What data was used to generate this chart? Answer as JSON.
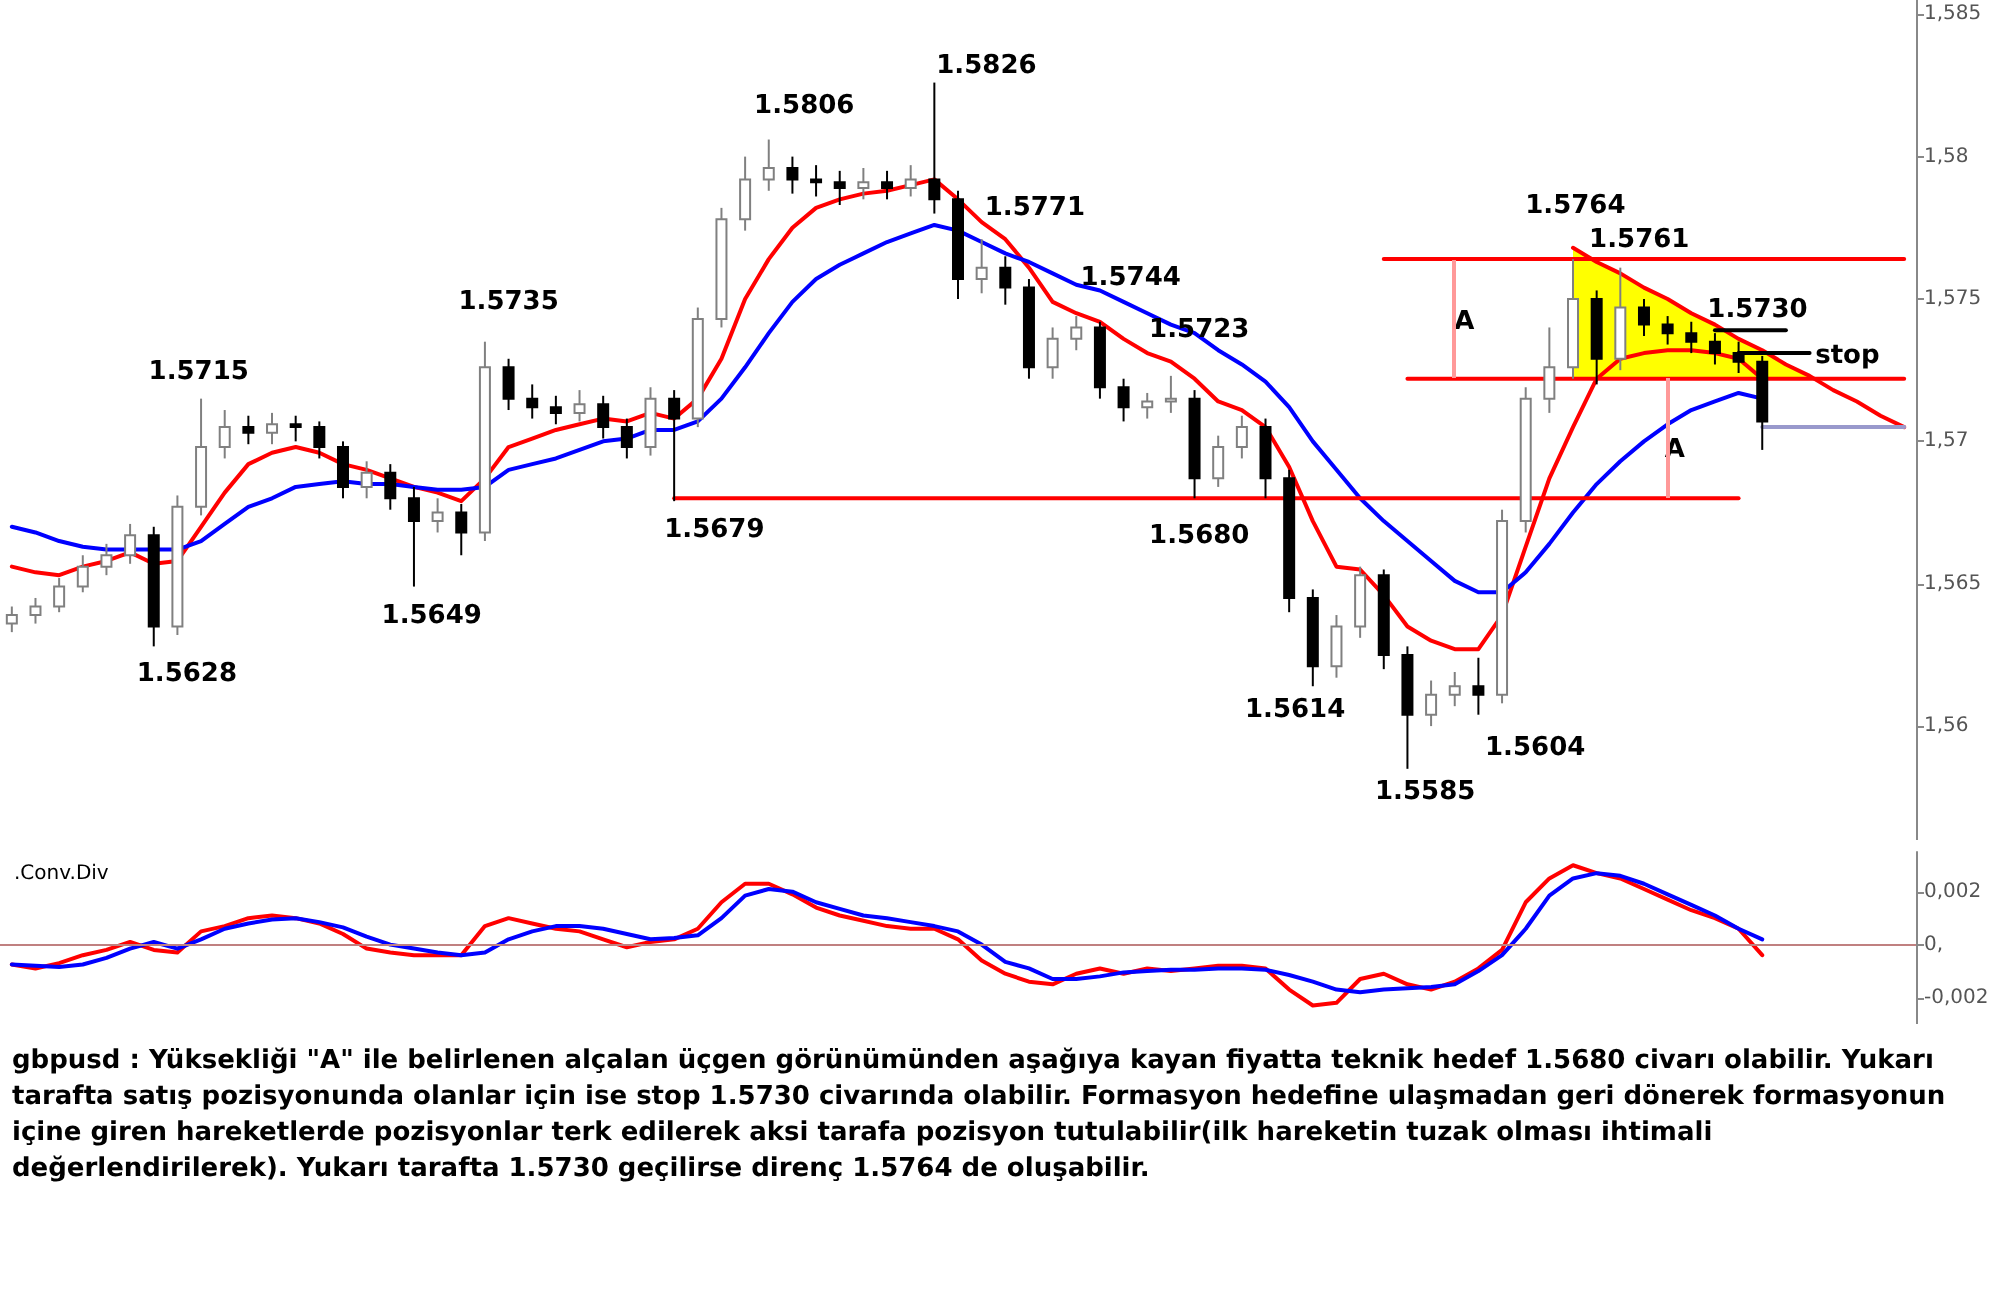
{
  "chart_data": [
    {
      "type": "candlestick",
      "marker": "none",
      "tick_labels": "y",
      "categories": [
        null,
        null,
        null,
        null,
        null,
        null,
        null,
        null,
        null,
        null,
        null,
        null,
        null,
        null,
        null,
        null,
        null,
        null,
        null,
        null,
        null,
        null,
        null,
        null,
        null,
        null,
        null,
        null,
        null,
        null,
        null,
        null,
        null,
        null,
        null,
        null,
        null,
        null,
        null,
        null,
        null,
        null,
        null,
        null,
        null,
        null,
        null,
        null,
        null,
        null,
        null,
        null,
        null,
        null,
        null,
        null,
        null,
        null,
        null,
        null,
        null,
        null,
        null,
        null,
        null,
        null,
        null,
        null,
        null,
        null,
        null,
        null,
        null,
        null,
        null,
        null,
        null,
        null,
        null,
        null,
        null
      ],
      "ohlc": [
        [
          1.5636,
          1.5642,
          1.5633,
          1.5639
        ],
        [
          1.5639,
          1.5645,
          1.5636,
          1.5642
        ],
        [
          1.5642,
          1.5652,
          1.564,
          1.5649
        ],
        [
          1.5649,
          1.566,
          1.5647,
          1.5656
        ],
        [
          1.5656,
          1.5664,
          1.5653,
          1.566
        ],
        [
          1.566,
          1.5671,
          1.5657,
          1.5667
        ],
        [
          1.5667,
          1.567,
          1.5628,
          1.5635
        ],
        [
          1.5635,
          1.5681,
          1.5632,
          1.5677
        ],
        [
          1.5677,
          1.5715,
          1.5674,
          1.5698
        ],
        [
          1.5698,
          1.5711,
          1.5694,
          1.5705
        ],
        [
          1.5705,
          1.5709,
          1.5699,
          1.5703
        ],
        [
          1.5703,
          1.571,
          1.5699,
          1.5706
        ],
        [
          1.5706,
          1.5709,
          1.57,
          1.5705
        ],
        [
          1.5705,
          1.5707,
          1.5694,
          1.5698
        ],
        [
          1.5698,
          1.57,
          1.568,
          1.5684
        ],
        [
          1.5684,
          1.5693,
          1.568,
          1.5689
        ],
        [
          1.5689,
          1.5692,
          1.5676,
          1.568
        ],
        [
          1.568,
          1.5684,
          1.5649,
          1.5672
        ],
        [
          1.5672,
          1.568,
          1.5668,
          1.5675
        ],
        [
          1.5675,
          1.5678,
          1.566,
          1.5668
        ],
        [
          1.5668,
          1.5735,
          1.5665,
          1.5726
        ],
        [
          1.5726,
          1.5729,
          1.5711,
          1.5715
        ],
        [
          1.5715,
          1.572,
          1.5708,
          1.5712
        ],
        [
          1.5712,
          1.5716,
          1.5706,
          1.571
        ],
        [
          1.571,
          1.5718,
          1.5707,
          1.5713
        ],
        [
          1.5713,
          1.5716,
          1.5701,
          1.5705
        ],
        [
          1.5705,
          1.5708,
          1.5694,
          1.5698
        ],
        [
          1.5698,
          1.5719,
          1.5695,
          1.5715
        ],
        [
          1.5715,
          1.5718,
          1.5679,
          1.5708
        ],
        [
          1.5708,
          1.5747,
          1.5705,
          1.5743
        ],
        [
          1.5743,
          1.5782,
          1.574,
          1.5778
        ],
        [
          1.5778,
          1.58,
          1.5774,
          1.5792
        ],
        [
          1.5792,
          1.5806,
          1.5788,
          1.5796
        ],
        [
          1.5796,
          1.58,
          1.5787,
          1.5792
        ],
        [
          1.5792,
          1.5797,
          1.5786,
          1.5791
        ],
        [
          1.5791,
          1.5795,
          1.5783,
          1.5789
        ],
        [
          1.5789,
          1.5796,
          1.5785,
          1.5791
        ],
        [
          1.5791,
          1.5795,
          1.5785,
          1.5789
        ],
        [
          1.5789,
          1.5797,
          1.5786,
          1.5792
        ],
        [
          1.5792,
          1.5826,
          1.578,
          1.5785
        ],
        [
          1.5785,
          1.5788,
          1.575,
          1.5757
        ],
        [
          1.5757,
          1.5771,
          1.5752,
          1.5761
        ],
        [
          1.5761,
          1.5765,
          1.5748,
          1.5754
        ],
        [
          1.5754,
          1.5757,
          1.5722,
          1.5726
        ],
        [
          1.5726,
          1.574,
          1.5722,
          1.5736
        ],
        [
          1.5736,
          1.5744,
          1.5732,
          1.574
        ],
        [
          1.574,
          1.5742,
          1.5715,
          1.5719
        ],
        [
          1.5719,
          1.5722,
          1.5707,
          1.5712
        ],
        [
          1.5712,
          1.5717,
          1.5708,
          1.5714
        ],
        [
          1.5714,
          1.5723,
          1.571,
          1.5715
        ],
        [
          1.5715,
          1.5718,
          1.568,
          1.5687
        ],
        [
          1.5687,
          1.5702,
          1.5684,
          1.5698
        ],
        [
          1.5698,
          1.5709,
          1.5694,
          1.5705
        ],
        [
          1.5705,
          1.5708,
          1.568,
          1.5687
        ],
        [
          1.5687,
          1.569,
          1.564,
          1.5645
        ],
        [
          1.5645,
          1.5648,
          1.5614,
          1.5621
        ],
        [
          1.5621,
          1.5639,
          1.5617,
          1.5635
        ],
        [
          1.5635,
          1.5656,
          1.5631,
          1.5653
        ],
        [
          1.5653,
          1.5655,
          1.562,
          1.5625
        ],
        [
          1.5625,
          1.5628,
          1.5585,
          1.5604
        ],
        [
          1.5604,
          1.5616,
          1.56,
          1.5611
        ],
        [
          1.5611,
          1.5619,
          1.5607,
          1.5614
        ],
        [
          1.5614,
          1.5624,
          1.5604,
          1.5611
        ],
        [
          1.5611,
          1.5676,
          1.5608,
          1.5672
        ],
        [
          1.5672,
          1.5719,
          1.5668,
          1.5715
        ],
        [
          1.5715,
          1.574,
          1.571,
          1.5726
        ],
        [
          1.5726,
          1.5764,
          1.5722,
          1.575
        ],
        [
          1.575,
          1.5753,
          1.572,
          1.5729
        ],
        [
          1.5729,
          1.5761,
          1.5725,
          1.5747
        ],
        [
          1.5747,
          1.575,
          1.5737,
          1.5741
        ],
        [
          1.5741,
          1.5744,
          1.5734,
          1.5738
        ],
        [
          1.5738,
          1.5742,
          1.5731,
          1.5735
        ],
        [
          1.5735,
          1.5738,
          1.5727,
          1.5731
        ],
        [
          1.5731,
          1.5735,
          1.5724,
          1.5728
        ],
        [
          1.5728,
          1.573,
          1.5697,
          1.5707
        ],
        null,
        null,
        null,
        null,
        null,
        null
      ],
      "series": [
        {
          "type": "line",
          "color": "#ff0000",
          "values": [
            null,
            null,
            null,
            null,
            null,
            null,
            null,
            null,
            null,
            null,
            null,
            null,
            null,
            null,
            null,
            null,
            null,
            null,
            null,
            null,
            null,
            null,
            null,
            null,
            null,
            null,
            null,
            null,
            null,
            null,
            null,
            null,
            null,
            null,
            null,
            null,
            null,
            null,
            null,
            null,
            null,
            null,
            null,
            null,
            null,
            null,
            null,
            null,
            null,
            null,
            null,
            null,
            null,
            null,
            null,
            null,
            null,
            null,
            null,
            null,
            null,
            null,
            null,
            null,
            null,
            null,
            1.5768,
            1.5763,
            1.5759,
            1.5754,
            1.575,
            1.5745,
            1.5741,
            1.5736,
            1.5732,
            1.5727,
            1.5723,
            1.5718,
            1.5714,
            1.5709,
            1.5705
          ],
          "lower": [
            null,
            null,
            null,
            null,
            null,
            null,
            null,
            null,
            null,
            null,
            null,
            null,
            null,
            null,
            null,
            null,
            null,
            null,
            null,
            null,
            null,
            null,
            null,
            null,
            null,
            null,
            null,
            null,
            null,
            null,
            null,
            null,
            null,
            null,
            null,
            null,
            null,
            null,
            null,
            null,
            null,
            null,
            null,
            null,
            null,
            null,
            null,
            null,
            null,
            null,
            null,
            null,
            null,
            null,
            null,
            null,
            null,
            null,
            null,
            null,
            null,
            null,
            null,
            null,
            null,
            null,
            1.5722,
            1.5722,
            1.5722,
            1.5722,
            1.5722,
            1.5722,
            1.5722,
            1.5722,
            1.5722,
            1.5722,
            1.5722,
            null,
            null,
            null,
            null
          ],
          "upper": [
            null,
            null,
            null,
            null,
            null,
            null,
            null,
            null,
            null,
            null,
            null,
            null,
            null,
            null,
            null,
            null,
            null,
            null,
            null,
            null,
            null,
            null,
            null,
            null,
            null,
            null,
            null,
            null,
            null,
            null,
            null,
            null,
            null,
            null,
            null,
            null,
            null,
            null,
            null,
            null,
            null,
            null,
            null,
            null,
            null,
            null,
            null,
            null,
            null,
            null,
            null,
            null,
            null,
            null,
            null,
            null,
            null,
            null,
            null,
            null,
            null,
            null,
            null,
            null,
            null,
            null,
            1.5768,
            1.5763,
            1.5759,
            1.5754,
            1.575,
            1.5745,
            1.5741,
            1.5736,
            1.5732,
            1.5727,
            1.5723,
            null,
            null,
            null,
            null
          ]
        },
        {
          "type": "line",
          "color": "#ff0000",
          "values": [
            1.5656,
            1.5654,
            1.5653,
            1.5656,
            1.5658,
            1.5661,
            1.5657,
            1.5658,
            1.567,
            1.5682,
            1.5692,
            1.5696,
            1.5698,
            1.5696,
            1.5692,
            1.569,
            1.5687,
            1.5684,
            1.5682,
            1.5679,
            1.5687,
            1.5698,
            1.5701,
            1.5704,
            1.5706,
            1.5708,
            1.5707,
            1.571,
            1.5708,
            1.5715,
            1.5729,
            1.575,
            1.5764,
            1.5775,
            1.5782,
            1.5785,
            1.5787,
            1.5788,
            1.579,
            1.5792,
            1.5785,
            1.5777,
            1.5771,
            1.5761,
            1.5749,
            1.5745,
            1.5742,
            1.5736,
            1.5731,
            1.5728,
            1.5722,
            1.5714,
            1.5711,
            1.5705,
            1.5691,
            1.5672,
            1.5656,
            1.5655,
            1.5646,
            1.5635,
            1.563,
            1.5627,
            1.5627,
            1.5639,
            1.5663,
            1.5687,
            1.5705,
            1.5722,
            1.5729,
            1.5731,
            1.5732,
            1.5732,
            1.5731,
            1.5729,
            1.5722,
            null,
            null,
            null,
            null,
            null,
            null
          ]
        },
        {
          "type": "line",
          "color": "#0000ff",
          "values": [
            1.567,
            1.5668,
            1.5665,
            1.5663,
            1.5662,
            1.5662,
            1.5662,
            1.5662,
            1.5665,
            1.5671,
            1.5677,
            1.568,
            1.5684,
            1.5685,
            1.5686,
            1.5685,
            1.5685,
            1.5684,
            1.5683,
            1.5683,
            1.5684,
            1.569,
            1.5692,
            1.5694,
            1.5697,
            1.57,
            1.5701,
            1.5704,
            1.5704,
            1.5707,
            1.5715,
            1.5726,
            1.5738,
            1.5749,
            1.5757,
            1.5762,
            1.5766,
            1.577,
            1.5773,
            1.5776,
            1.5774,
            1.577,
            1.5766,
            1.5763,
            1.5759,
            1.5755,
            1.5753,
            1.5749,
            1.5745,
            1.5741,
            1.5738,
            1.5732,
            1.5727,
            1.5721,
            1.5712,
            1.57,
            1.569,
            1.568,
            1.5672,
            1.5665,
            1.5658,
            1.5651,
            1.5647,
            1.5647,
            1.5654,
            1.5664,
            1.5675,
            1.5685,
            1.5693,
            1.57,
            1.5706,
            1.5711,
            1.5714,
            1.5717,
            1.5715,
            null,
            null,
            null,
            null,
            null,
            null
          ]
        },
        {
          "type": "line",
          "color": "#ff0000",
          "values": [
            null,
            null,
            null,
            null,
            null,
            null,
            null,
            null,
            null,
            null,
            null,
            null,
            null,
            null,
            null,
            null,
            null,
            null,
            null,
            null,
            null,
            null,
            null,
            null,
            null,
            null,
            null,
            null,
            null,
            null,
            null,
            null,
            null,
            null,
            null,
            null,
            null,
            null,
            null,
            null,
            null,
            null,
            null,
            null,
            null,
            null,
            null,
            null,
            null,
            null,
            null,
            null,
            null,
            null,
            null,
            null,
            null,
            null,
            1.5764,
            1.5764,
            1.5764,
            1.5764,
            1.5764,
            1.5764,
            1.5764,
            1.5764,
            1.5764,
            1.5764,
            1.5764,
            1.5764,
            1.5764,
            1.5764,
            1.5764,
            1.5764,
            1.5764,
            1.5764,
            1.5764,
            1.5764,
            1.5764,
            1.5764,
            1.5764
          ]
        },
        {
          "type": "line",
          "color": "#ff0000",
          "values": [
            null,
            null,
            null,
            null,
            null,
            null,
            null,
            null,
            null,
            null,
            null,
            null,
            null,
            null,
            null,
            null,
            null,
            null,
            null,
            null,
            null,
            null,
            null,
            null,
            null,
            null,
            null,
            null,
            null,
            null,
            null,
            null,
            null,
            null,
            null,
            null,
            null,
            null,
            null,
            null,
            null,
            null,
            null,
            null,
            null,
            null,
            null,
            null,
            null,
            null,
            null,
            null,
            null,
            null,
            null,
            null,
            null,
            null,
            null,
            1.5722,
            1.5722,
            1.5722,
            1.5722,
            1.5722,
            1.5722,
            1.5722,
            1.5722,
            1.5722,
            1.5722,
            1.5722,
            1.5722,
            1.5722,
            1.5722,
            1.5722,
            1.5722,
            1.5722,
            1.5722,
            1.5722,
            1.5722,
            1.5722,
            1.5722
          ]
        },
        {
          "type": "line",
          "color": "#ff0000",
          "values": [
            null,
            null,
            null,
            null,
            null,
            null,
            null,
            null,
            null,
            null,
            null,
            null,
            null,
            null,
            null,
            null,
            null,
            null,
            null,
            null,
            null,
            null,
            null,
            null,
            null,
            null,
            null,
            null,
            1.568,
            1.568,
            1.568,
            1.568,
            1.568,
            1.568,
            1.568,
            1.568,
            1.568,
            1.568,
            1.568,
            1.568,
            1.568,
            1.568,
            1.568,
            1.568,
            1.568,
            1.568,
            1.568,
            1.568,
            1.568,
            1.568,
            1.568,
            1.568,
            1.568,
            1.568,
            1.568,
            1.568,
            1.568,
            1.568,
            1.568,
            1.568,
            1.568,
            1.568,
            1.568,
            1.568,
            1.568,
            1.568,
            1.568,
            1.568,
            1.568,
            1.568,
            1.568,
            1.568,
            1.568,
            1.568,
            null,
            null,
            null,
            null,
            null,
            null,
            null
          ]
        },
        {
          "type": "line",
          "color": "#000000",
          "values": [
            null,
            null,
            null,
            null,
            null,
            null,
            null,
            null,
            null,
            null,
            null,
            null,
            null,
            null,
            null,
            null,
            null,
            null,
            null,
            null,
            null,
            null,
            null,
            null,
            null,
            null,
            null,
            null,
            null,
            null,
            null,
            null,
            null,
            null,
            null,
            null,
            null,
            null,
            null,
            null,
            null,
            null,
            null,
            null,
            null,
            null,
            null,
            null,
            null,
            null,
            null,
            null,
            null,
            null,
            null,
            null,
            null,
            null,
            null,
            null,
            null,
            null,
            null,
            null,
            null,
            null,
            null,
            null,
            null,
            null,
            null,
            null,
            1.5739,
            1.5739,
            1.5739,
            1.5739,
            null,
            null,
            null,
            null,
            null
          ]
        },
        {
          "type": "line",
          "color": "#000000",
          "values": [
            null,
            null,
            null,
            null,
            null,
            null,
            null,
            null,
            null,
            null,
            null,
            null,
            null,
            null,
            null,
            null,
            null,
            null,
            null,
            null,
            null,
            null,
            null,
            null,
            null,
            null,
            null,
            null,
            null,
            null,
            null,
            null,
            null,
            null,
            null,
            null,
            null,
            null,
            null,
            null,
            null,
            null,
            null,
            null,
            null,
            null,
            null,
            null,
            null,
            null,
            null,
            null,
            null,
            null,
            null,
            null,
            null,
            null,
            null,
            null,
            null,
            null,
            null,
            null,
            null,
            null,
            null,
            null,
            null,
            null,
            null,
            null,
            null,
            1.5731,
            1.5731,
            1.5731,
            1.5731,
            null,
            null,
            null,
            null
          ]
        },
        {
          "type": "line",
          "color": "#9999cc",
          "values": [
            null,
            null,
            null,
            null,
            null,
            null,
            null,
            null,
            null,
            null,
            null,
            null,
            null,
            null,
            null,
            null,
            null,
            null,
            null,
            null,
            null,
            null,
            null,
            null,
            null,
            null,
            null,
            null,
            null,
            null,
            null,
            null,
            null,
            null,
            null,
            null,
            null,
            null,
            null,
            null,
            null,
            null,
            null,
            null,
            null,
            null,
            null,
            null,
            null,
            null,
            null,
            null,
            null,
            null,
            null,
            null,
            null,
            null,
            null,
            null,
            null,
            null,
            null,
            null,
            null,
            null,
            null,
            null,
            null,
            null,
            null,
            null,
            null,
            null,
            1.5705,
            1.5705,
            1.5705,
            1.5705,
            1.5705,
            1.5705,
            1.5705
          ]
        }
      ],
      "ylim": [
        1.556,
        1.5855
      ],
      "yticks": [
        {
          "value": 1.56,
          "label": "1,56"
        },
        {
          "value": 1.565,
          "label": "1,565"
        },
        {
          "value": 1.57,
          "label": "1,57"
        },
        {
          "value": 1.575,
          "label": "1,575"
        },
        {
          "value": 1.58,
          "label": "1,58"
        },
        {
          "value": 1.585,
          "label": "1,585"
        }
      ],
      "annotations": [
        "1.5628",
        "1.5715",
        "1.5649",
        "1.5735",
        "1.5679",
        "1.5806",
        "1.5826",
        "1.5771",
        "1.5744",
        "1.5723",
        "1.5680",
        "1.5614",
        "1.5585",
        "A",
        "1.5604",
        "1.5764",
        "1.5761",
        "A",
        "1.5730",
        "stop"
      ]
    },
    {
      "type": "line",
      "title": ".Conv.Div",
      "marker": "none",
      "tick_labels": "y",
      "categories": [
        null,
        null,
        null,
        null,
        null,
        null,
        null,
        null,
        null,
        null,
        null,
        null,
        null,
        null,
        null,
        null,
        null,
        null,
        null,
        null,
        null,
        null,
        null,
        null,
        null,
        null,
        null,
        null,
        null,
        null,
        null,
        null,
        null,
        null,
        null,
        null,
        null,
        null,
        null,
        null,
        null,
        null,
        null,
        null,
        null,
        null,
        null,
        null,
        null,
        null,
        null,
        null,
        null,
        null,
        null,
        null,
        null,
        null,
        null,
        null,
        null,
        null,
        null,
        null,
        null,
        null,
        null,
        null,
        null,
        null,
        null,
        null,
        null,
        null,
        null,
        null,
        null,
        null,
        null,
        null,
        null
      ],
      "series": [
        {
          "color": "#ff0000",
          "values": [
            -0.00075,
            -0.0009,
            -0.0007,
            -0.0004,
            -0.0002,
            0.0001,
            -0.0002,
            -0.0003,
            0.0005,
            0.0007,
            0.001,
            0.0011,
            0.001,
            0.0008,
            0.0004,
            -0.00015,
            -0.0003,
            -0.0004,
            -0.0004,
            -0.0004,
            0.0007,
            0.001,
            0.0008,
            0.0006,
            0.0005,
            0.0002,
            -0.0001,
            0.0001,
            0.0002,
            0.0006,
            0.0016,
            0.0023,
            0.0023,
            0.0019,
            0.0014,
            0.0011,
            0.0009,
            0.0007,
            0.0006,
            0.0006,
            0.0002,
            -0.0006,
            -0.0011,
            -0.0014,
            -0.0015,
            -0.0011,
            -0.0009,
            -0.0011,
            -0.0009,
            -0.001,
            -0.0009,
            -0.0008,
            -0.0008,
            -0.0009,
            -0.0017,
            -0.0023,
            -0.0022,
            -0.0013,
            -0.0011,
            -0.0015,
            -0.0017,
            -0.0014,
            -0.0009,
            -0.0002,
            0.0016,
            0.0025,
            0.003,
            0.0027,
            0.0025,
            0.0021,
            0.0017,
            0.0013,
            0.001,
            0.0006,
            -0.0004,
            null,
            null,
            null,
            null,
            null,
            null
          ]
        },
        {
          "color": "#0000ff",
          "values": [
            -0.00075,
            -0.0008,
            -0.00085,
            -0.00075,
            -0.0005,
            -0.00015,
            0.0001,
            -0.00015,
            0.0002,
            0.0006,
            0.0008,
            0.00095,
            0.001,
            0.00085,
            0.00065,
            0.0003,
            0,
            -0.00015,
            -0.0003,
            -0.0004,
            -0.0003,
            0.0002,
            0.0005,
            0.0007,
            0.0007,
            0.0006,
            0.0004,
            0.0002,
            0.00025,
            0.00035,
            0.001,
            0.00185,
            0.0021,
            0.002,
            0.0016,
            0.00135,
            0.0011,
            0.001,
            0.00085,
            0.0007,
            0.0005,
            0,
            -0.00065,
            -0.0009,
            -0.0013,
            -0.0013,
            -0.0012,
            -0.00105,
            -0.001,
            -0.00095,
            -0.00095,
            -0.0009,
            -0.0009,
            -0.00095,
            -0.00115,
            -0.0014,
            -0.0017,
            -0.0018,
            -0.0017,
            -0.00165,
            -0.0016,
            -0.0015,
            -0.001,
            -0.0004,
            0.0006,
            0.00185,
            0.0025,
            0.0027,
            0.0026,
            0.0023,
            0.0019,
            0.0015,
            0.0011,
            0.0006,
            0.0002,
            null,
            null,
            null,
            null,
            null,
            null
          ]
        }
      ],
      "ylim": [
        -0.003,
        0.0035
      ],
      "yticks": [
        {
          "value": -0.002,
          "label": "-0,002"
        },
        {
          "value": 0,
          "label": "0,"
        },
        {
          "value": 0.002,
          "label": "0,002"
        }
      ],
      "ref_lines": [
        {
          "axis": "y",
          "value": 0,
          "color": "#c08080"
        }
      ],
      "annotations": [
        "gbpusd : Yüksekliği \"A\" ile belirlenen alçalan üçgen görünümünden aşağıya kayan fiyatta teknik hedef 1.5680 civarı olabilir. Yukarı tarafta satış pozisyonunda olanlar için ise stop 1.5730 civarında olabilir. Formasyon hedefine ulaşmadan geri dönerek formasyonun içine giren hareketlerde pozisyonlar terk edilerek aksi tarafa pozisyon tutulabilir(ilk hareketin tuzak olması ihtimali değerlendirilerek). Yukarı tarafta 1.5730 geçilirse direnç 1.5764 de oluşabilir."
      ]
    }
  ]
}
